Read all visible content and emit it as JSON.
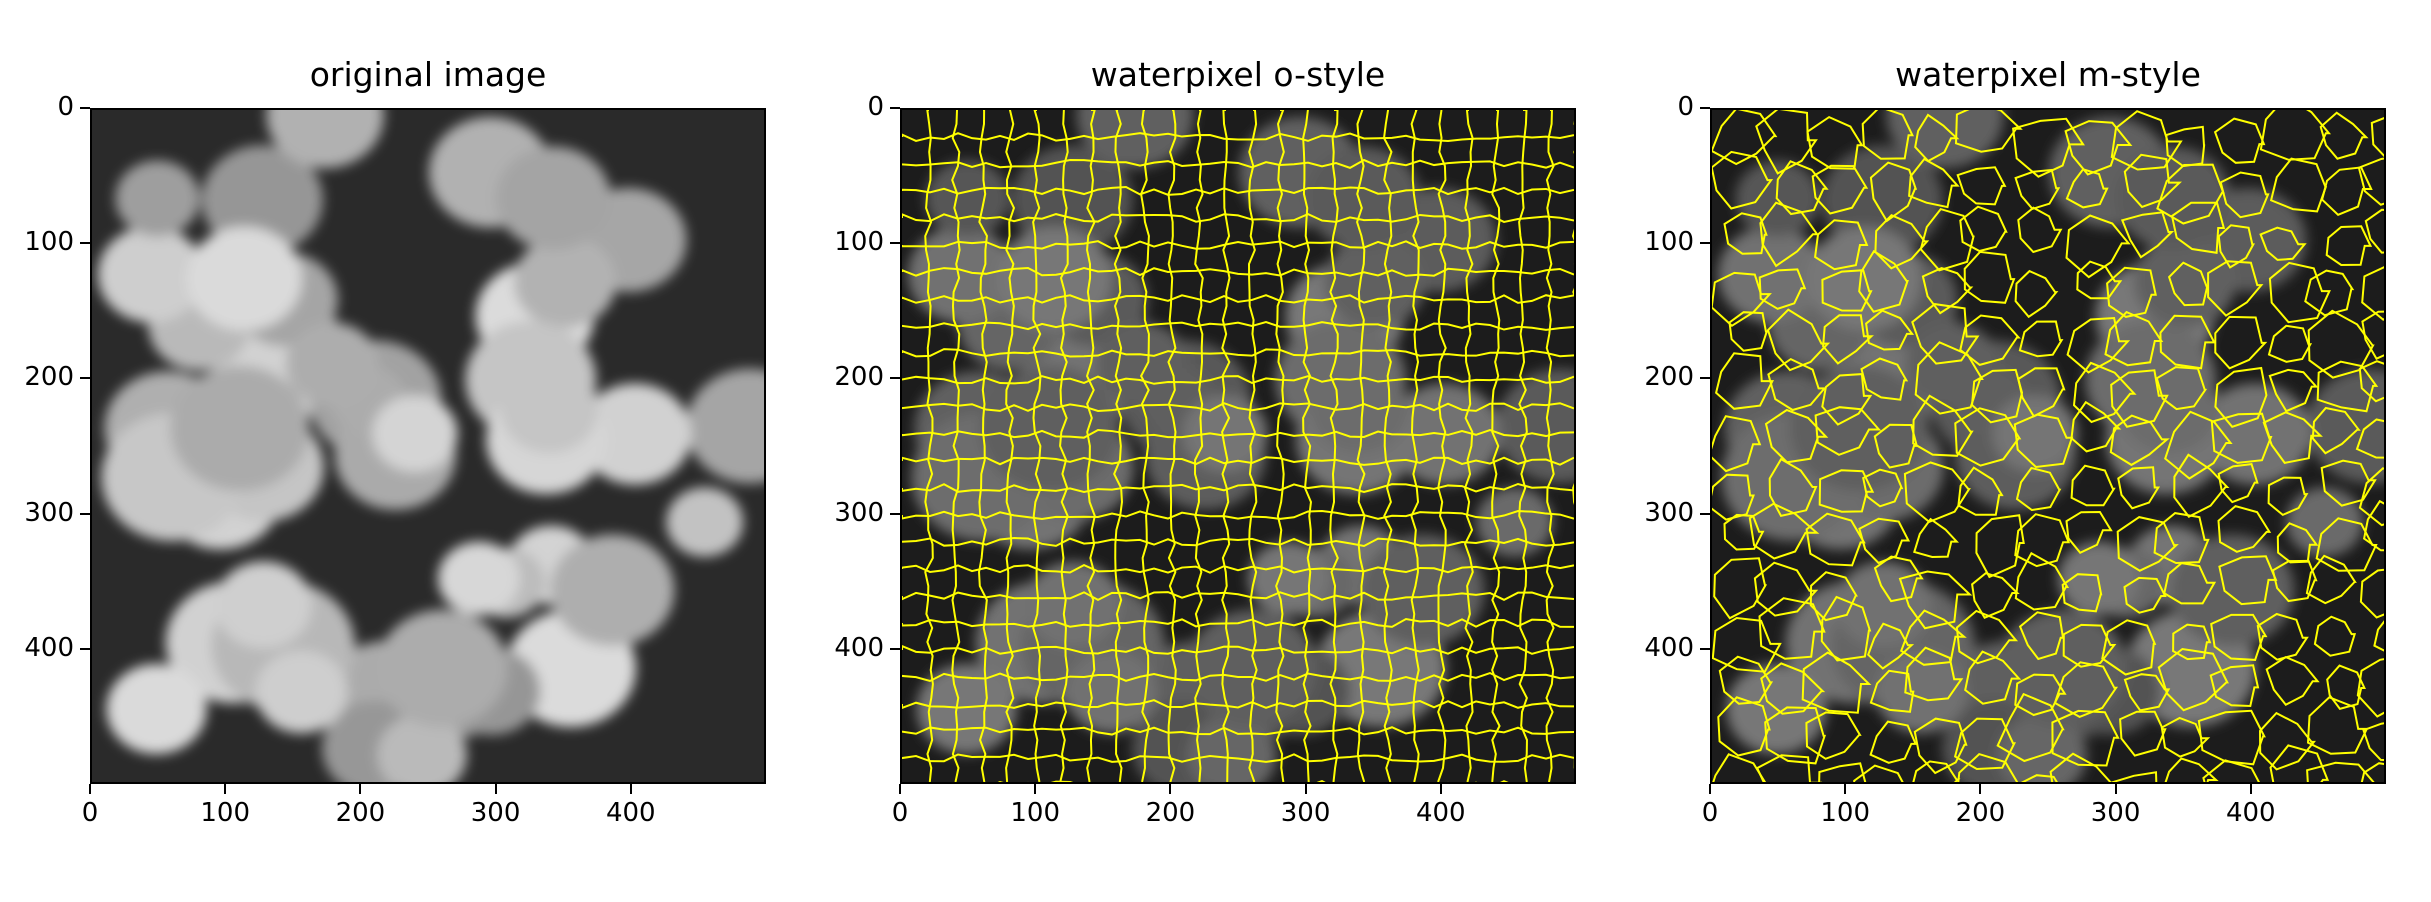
{
  "figure": {
    "panels": [
      {
        "title": "original image",
        "style": "grayscale"
      },
      {
        "title": "waterpixel o-style",
        "style": "grid-overlay"
      },
      {
        "title": "waterpixel m-style",
        "style": "organic-overlay"
      }
    ],
    "y_ticks": [
      "0",
      "100",
      "200",
      "300",
      "400"
    ],
    "x_ticks": [
      "0",
      "100",
      "200",
      "300",
      "400"
    ],
    "axis_range": [
      0,
      500
    ],
    "overlay_color": "#ffff00"
  }
}
